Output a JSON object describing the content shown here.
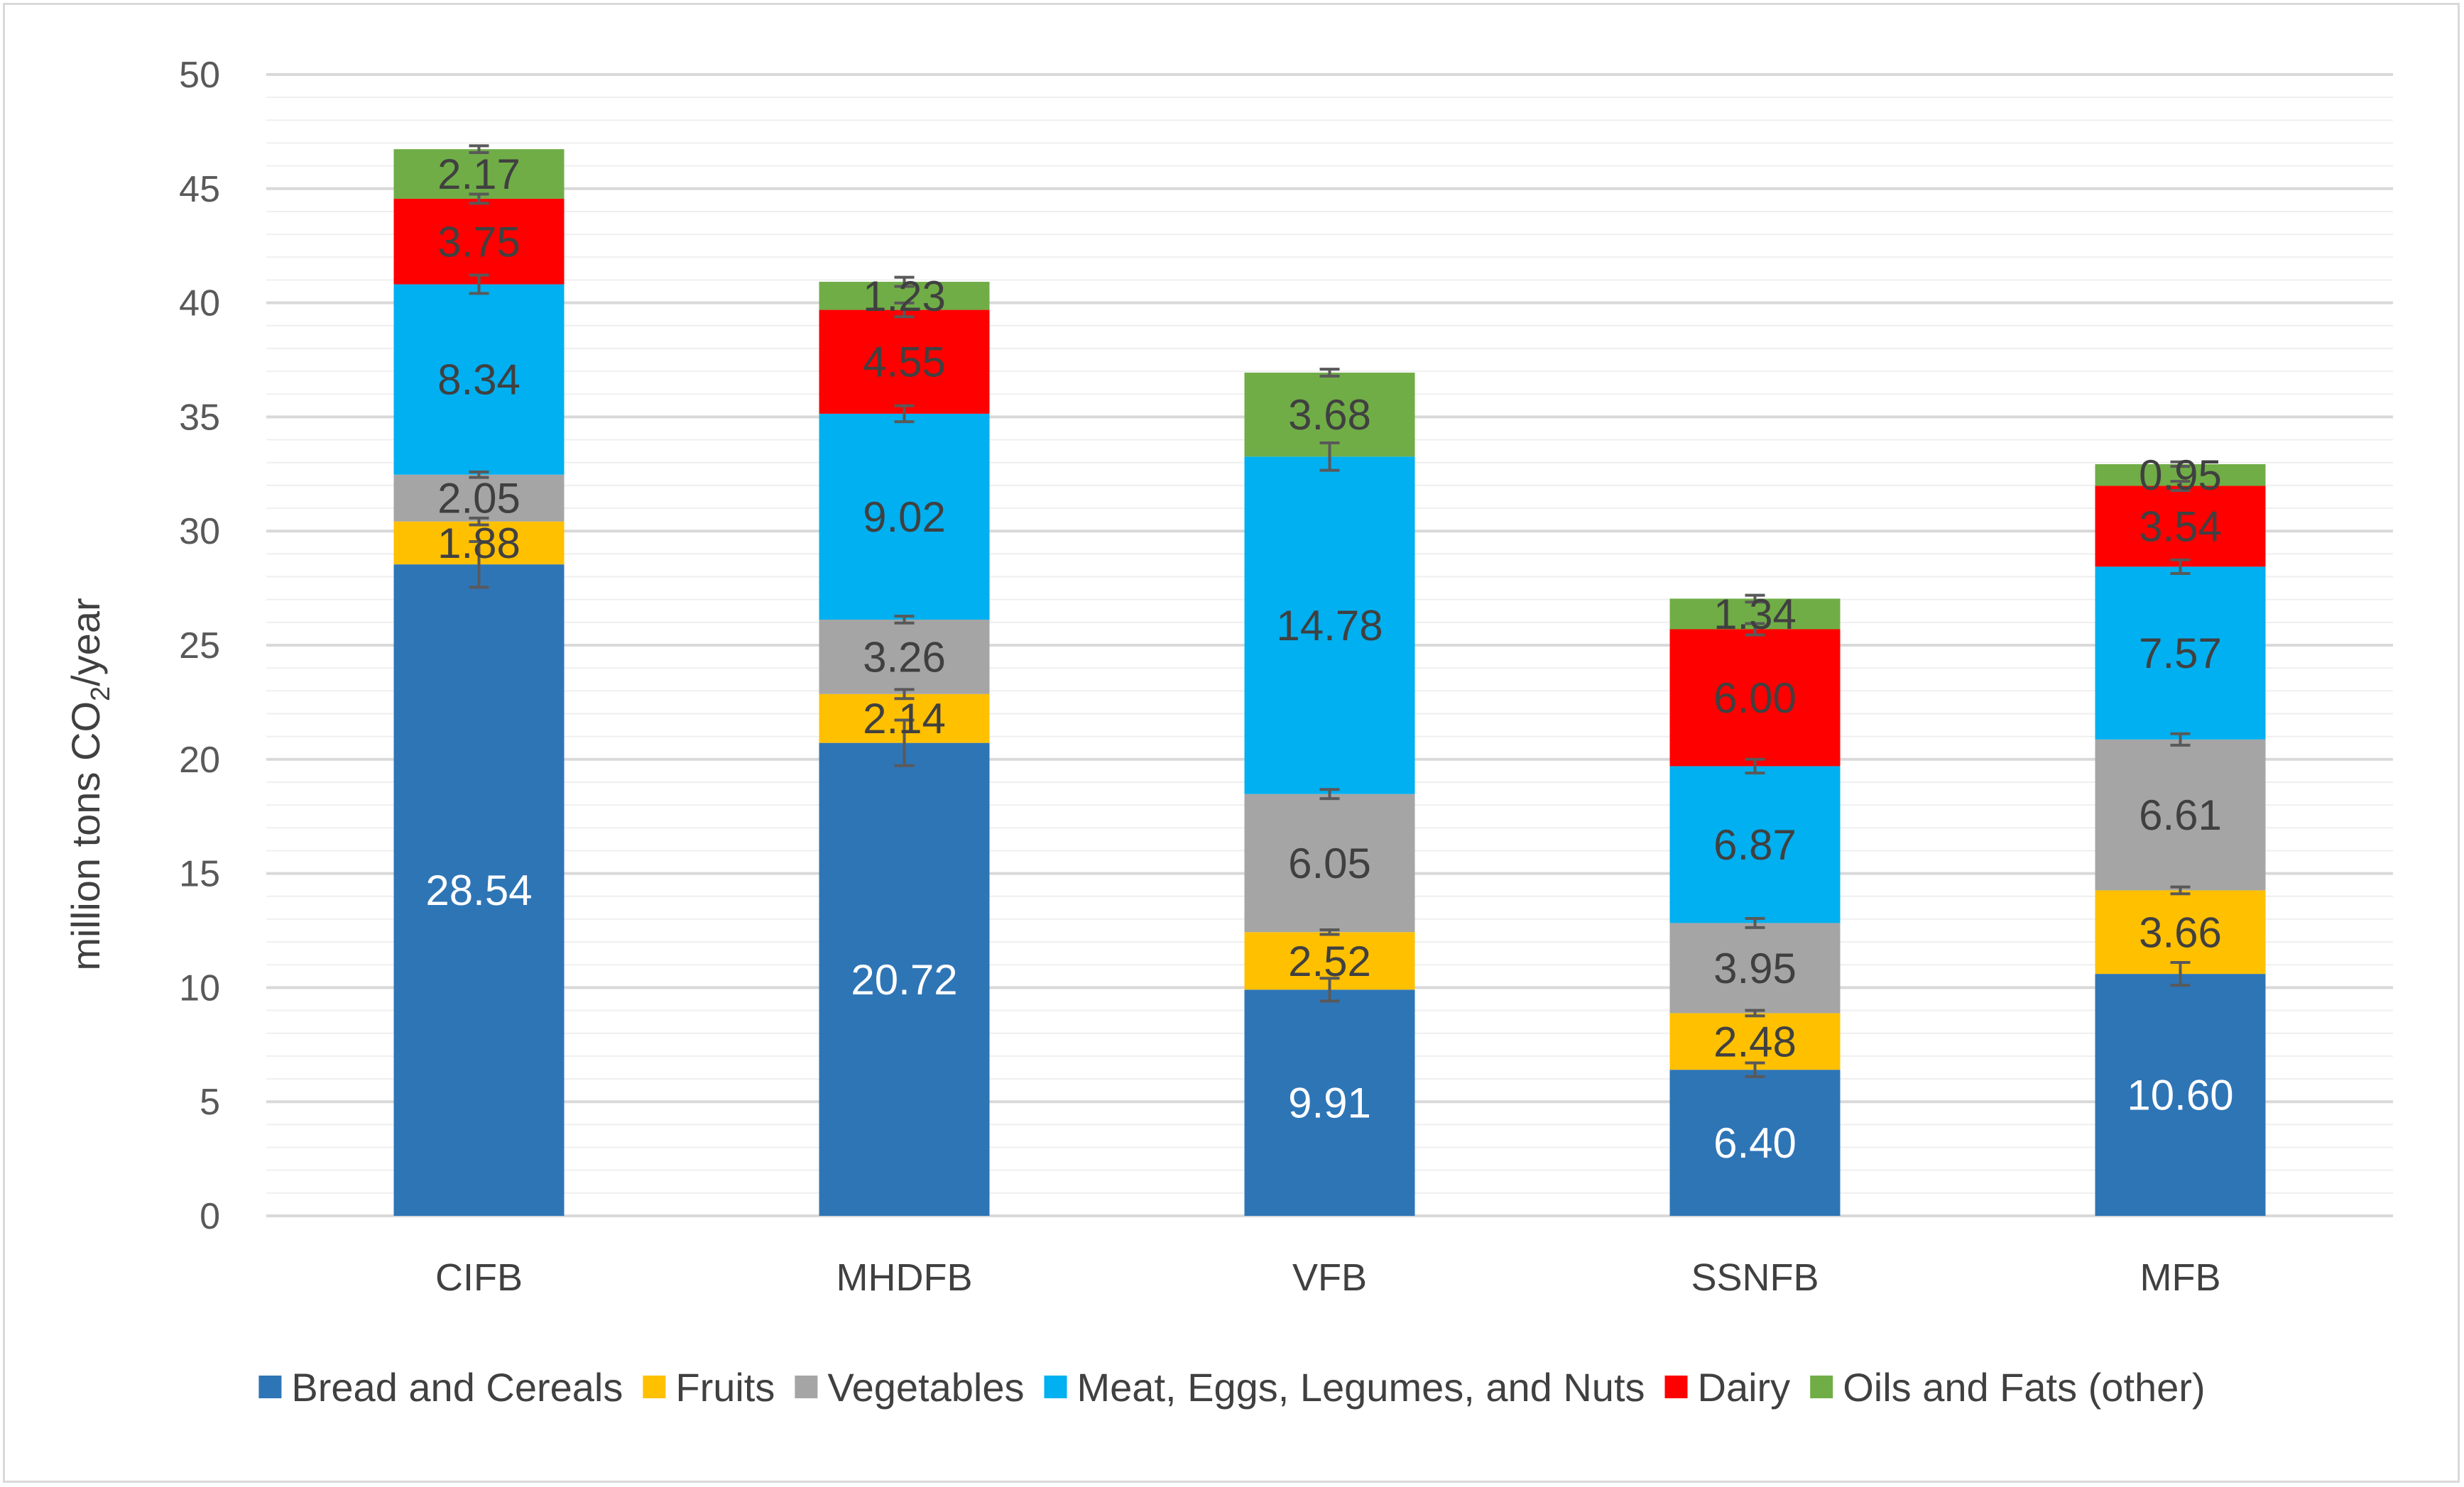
{
  "chart_data": {
    "type": "bar",
    "stacked": true,
    "categories": [
      "CIFB",
      "MHDFB",
      "VFB",
      "SSNFB",
      "MFB"
    ],
    "series": [
      {
        "name": "Bread and Cereals",
        "color": "#2e75b6",
        "label_color": "#ffffff",
        "values": [
          28.54,
          20.72,
          9.91,
          6.4,
          10.6
        ],
        "labels": [
          "28.54",
          "20.72",
          "9.91",
          "6.40",
          "10.60"
        ]
      },
      {
        "name": "Fruits",
        "color": "#ffc000",
        "label_color": "#404040",
        "values": [
          1.88,
          2.14,
          2.52,
          2.48,
          3.66
        ],
        "labels": [
          "1.88",
          "2.14",
          "2.52",
          "2.48",
          "3.66"
        ]
      },
      {
        "name": "Vegetables",
        "color": "#a5a5a5",
        "label_color": "#404040",
        "values": [
          2.05,
          3.26,
          6.05,
          3.95,
          6.61
        ],
        "labels": [
          "2.05",
          "3.26",
          "6.05",
          "3.95",
          "6.61"
        ]
      },
      {
        "name": "Meat, Eggs, Legumes, and Nuts",
        "color": "#00b0f0",
        "label_color": "#404040",
        "values": [
          8.34,
          9.02,
          14.78,
          6.87,
          7.57
        ],
        "labels": [
          "8.34",
          "9.02",
          "14.78",
          "6.87",
          "7.57"
        ]
      },
      {
        "name": "Dairy",
        "color": "#ff0000",
        "label_color": "#404040",
        "values": [
          3.75,
          4.55,
          0,
          6.0,
          3.54
        ],
        "labels": [
          "3.75",
          "4.55",
          "",
          "6.00",
          "3.54"
        ]
      },
      {
        "name": "Oils and Fats (other)",
        "color": "#70ad47",
        "label_color": "#404040",
        "values": [
          2.17,
          1.23,
          3.68,
          1.34,
          0.95
        ],
        "labels": [
          "2.17",
          "1.23",
          "3.68",
          "1.34",
          "0.95"
        ]
      }
    ],
    "error_bars": [
      [
        1.0,
        1.0,
        0.5,
        0.3,
        0.5
      ],
      [
        0.15,
        0.2,
        0.1,
        0.12,
        0.15
      ],
      [
        0.12,
        0.15,
        0.2,
        0.2,
        0.25
      ],
      [
        0.4,
        0.35,
        0.6,
        0.3,
        0.3
      ],
      [
        0.2,
        0.3,
        0,
        0.25,
        0.2
      ],
      [
        0.15,
        0.2,
        0.15,
        0.15,
        0.1
      ]
    ],
    "ylabel_prefix": "million tons CO",
    "ylabel_sub": "2",
    "ylabel_suffix": "/year",
    "ylim": [
      0,
      50
    ],
    "yticks": [
      0,
      5,
      10,
      15,
      20,
      25,
      30,
      35,
      40,
      45,
      50
    ],
    "ytick_labels": [
      "0",
      "5",
      "10",
      "15",
      "20",
      "25",
      "30",
      "35",
      "40",
      "45",
      "50"
    ],
    "minor_grid_step": 1,
    "grid": true,
    "legend_position": "bottom",
    "colors": {
      "major_grid": "#d9d9d9",
      "minor_grid": "#efefef",
      "error_bar": "#595959",
      "axis": "#d9d9d9"
    }
  }
}
